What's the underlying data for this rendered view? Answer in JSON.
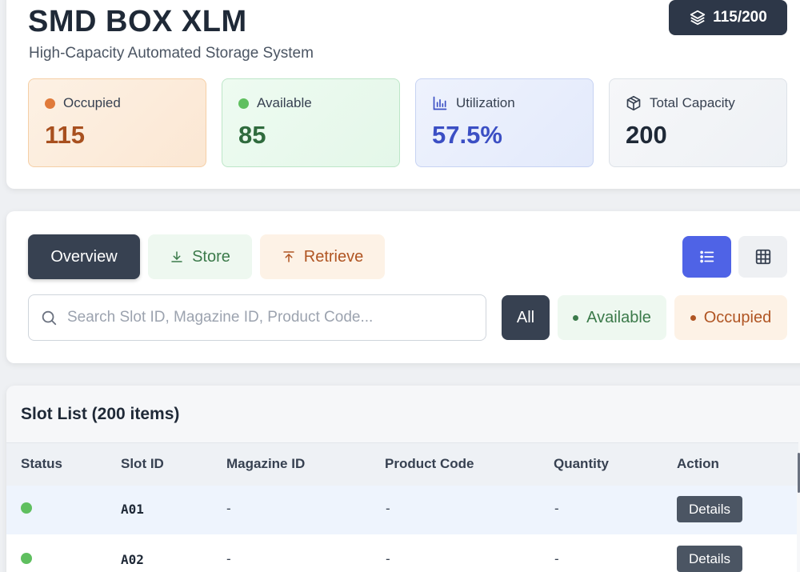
{
  "header": {
    "title": "SMD BOX XLM",
    "subtitle": "High-Capacity Automated Storage System",
    "capacity_badge": "115/200"
  },
  "stats": [
    {
      "label": "Occupied",
      "value": "115",
      "icon": "orange-dot",
      "color": "#e07a3a"
    },
    {
      "label": "Available",
      "value": "85",
      "icon": "green-dot",
      "color": "#5fbf5f"
    },
    {
      "label": "Utilization",
      "value": "57.5%",
      "icon": "bar-chart-icon",
      "color": "#3b4fc4"
    },
    {
      "label": "Total Capacity",
      "value": "200",
      "icon": "box-icon",
      "color": "#374151"
    }
  ],
  "tabs": [
    {
      "label": "Overview",
      "active": true
    },
    {
      "label": "Store",
      "icon": "download-icon"
    },
    {
      "label": "Retrieve",
      "icon": "upload-icon"
    }
  ],
  "view_toggle": {
    "active": "list",
    "options": [
      "list-icon",
      "grid-icon"
    ]
  },
  "search": {
    "placeholder": "Search Slot ID, Magazine ID, Product Code...",
    "value": ""
  },
  "filters": [
    {
      "label": "All",
      "active": true
    },
    {
      "label": "Available",
      "color": "#3b7a4a"
    },
    {
      "label": "Occupied",
      "color": "#b05523"
    }
  ],
  "table": {
    "title": "Slot List (200 items)",
    "columns": [
      "Status",
      "Slot ID",
      "Magazine ID",
      "Product Code",
      "Quantity",
      "Action"
    ],
    "rows": [
      {
        "status": "available",
        "slot_id": "A01",
        "magazine_id": "-",
        "product_code": "-",
        "quantity": "-",
        "action": "Details"
      },
      {
        "status": "available",
        "slot_id": "A02",
        "magazine_id": "-",
        "product_code": "-",
        "quantity": "-",
        "action": "Details"
      }
    ]
  },
  "colors": {
    "accent": "#4f63e6",
    "dark": "#374151",
    "available": "#5fbf5f",
    "occupied": "#e07a3a"
  }
}
